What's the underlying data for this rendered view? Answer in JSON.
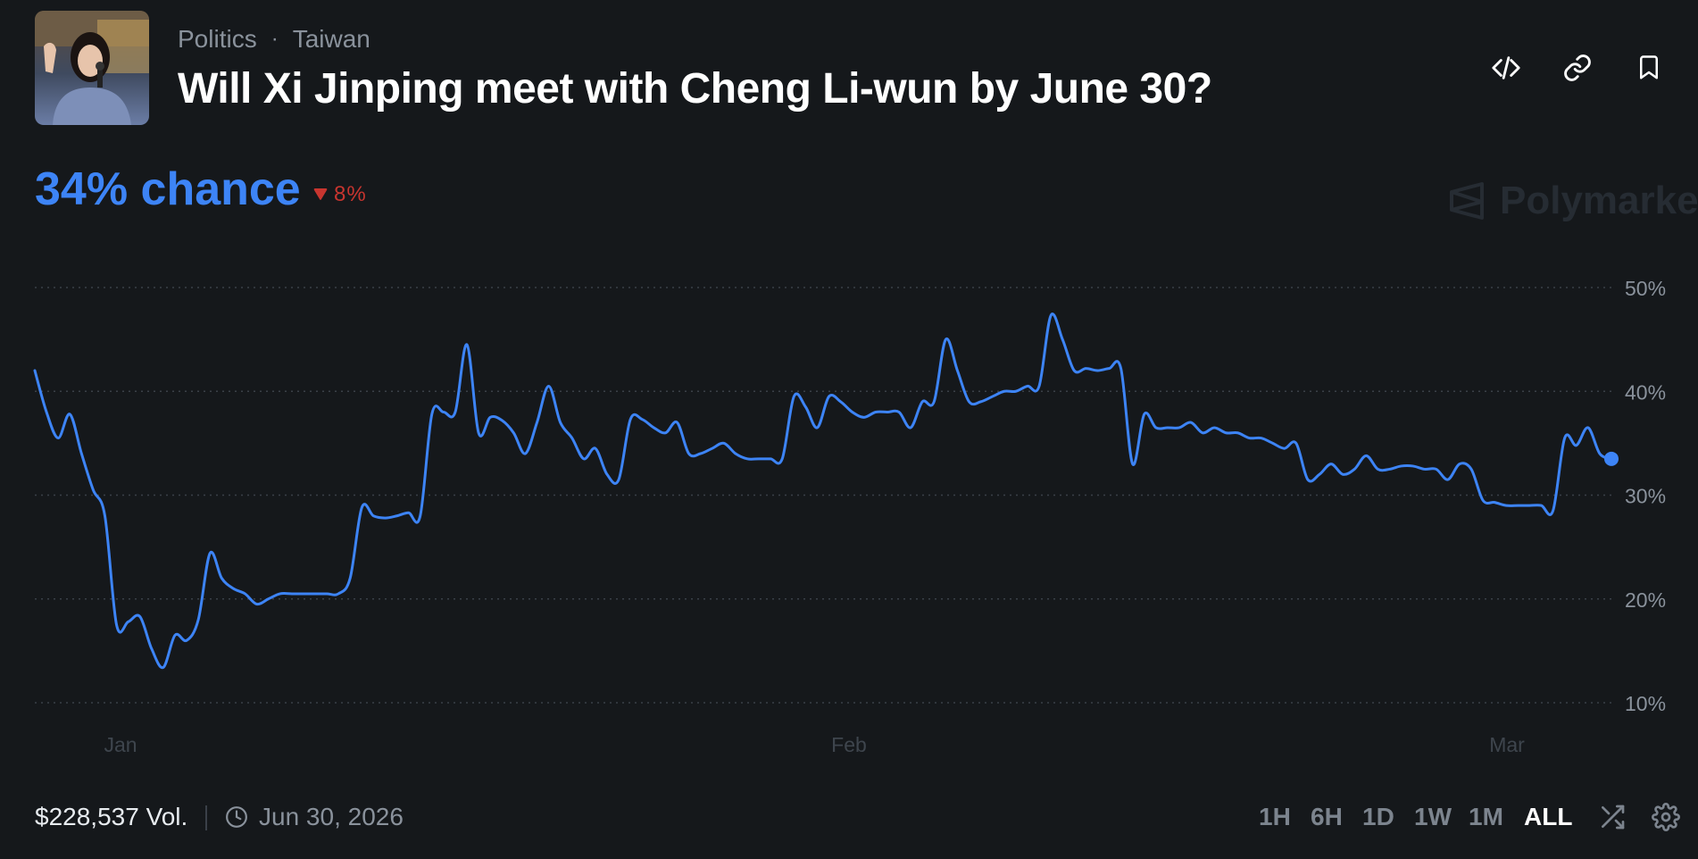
{
  "header": {
    "breadcrumb": [
      "Politics",
      "Taiwan"
    ],
    "title": "Will Xi Jinping meet with Cheng Li-wun by June 30?",
    "icons": [
      "code-icon",
      "link-icon",
      "bookmark-icon"
    ]
  },
  "summary": {
    "chance_text": "34% chance",
    "delta_text": "8%",
    "delta_direction": "down",
    "delta_color": "#c8352f",
    "accent_color": "#3d84f6"
  },
  "brand": {
    "name": "Polymarket"
  },
  "footer": {
    "volume": "$228,537 Vol.",
    "end_date": "Jun 30, 2026",
    "ranges": [
      "1H",
      "6H",
      "1D",
      "1W",
      "1M",
      "ALL"
    ],
    "active_range": "ALL"
  },
  "chart_data": {
    "type": "line",
    "y_ticks": [
      "50%",
      "40%",
      "30%",
      "20%",
      "10%"
    ],
    "x_ticks": [
      "Jan",
      "Feb",
      "Mar"
    ],
    "ylim": [
      10,
      50
    ],
    "grid": true,
    "series": [
      {
        "color": "#3d84f6",
        "points": [
          [
            0,
            42
          ],
          [
            1,
            38
          ],
          [
            2,
            35.5
          ],
          [
            3,
            37.8
          ],
          [
            4,
            34
          ],
          [
            5,
            30.5
          ],
          [
            6,
            28
          ],
          [
            7,
            17.5
          ],
          [
            8,
            17.8
          ],
          [
            9,
            18.3
          ],
          [
            10,
            15.2
          ],
          [
            11,
            13.4
          ],
          [
            12,
            16.5
          ],
          [
            13,
            16
          ],
          [
            14,
            18
          ],
          [
            15,
            24.4
          ],
          [
            16,
            22
          ],
          [
            17,
            21
          ],
          [
            18,
            20.5
          ],
          [
            19,
            19.5
          ],
          [
            20,
            20
          ],
          [
            21,
            20.5
          ],
          [
            22,
            20.5
          ],
          [
            23,
            20.5
          ],
          [
            24,
            20.5
          ],
          [
            25,
            20.5
          ],
          [
            26,
            20.5
          ],
          [
            27,
            22
          ],
          [
            28,
            28.8
          ],
          [
            29,
            28
          ],
          [
            30,
            27.8
          ],
          [
            31,
            28
          ],
          [
            32,
            28.3
          ],
          [
            33,
            28
          ],
          [
            34,
            37.8
          ],
          [
            35,
            38
          ],
          [
            36,
            38
          ],
          [
            37,
            44.5
          ],
          [
            38,
            36
          ],
          [
            39,
            37.5
          ],
          [
            40,
            37.2
          ],
          [
            41,
            36
          ],
          [
            42,
            34
          ],
          [
            43,
            37
          ],
          [
            44,
            40.5
          ],
          [
            45,
            37
          ],
          [
            46,
            35.5
          ],
          [
            47,
            33.5
          ],
          [
            48,
            34.5
          ],
          [
            49,
            32
          ],
          [
            50,
            31.5
          ],
          [
            51,
            37.3
          ],
          [
            52,
            37.3
          ],
          [
            53,
            36.5
          ],
          [
            54,
            36
          ],
          [
            55,
            37
          ],
          [
            56,
            34
          ],
          [
            57,
            34
          ],
          [
            58,
            34.5
          ],
          [
            59,
            35
          ],
          [
            60,
            34
          ],
          [
            61,
            33.5
          ],
          [
            62,
            33.5
          ],
          [
            63,
            33.5
          ],
          [
            64,
            33.5
          ],
          [
            65,
            39.5
          ],
          [
            66,
            38.5
          ],
          [
            67,
            36.5
          ],
          [
            68,
            39.5
          ],
          [
            69,
            39
          ],
          [
            70,
            38
          ],
          [
            71,
            37.5
          ],
          [
            72,
            38
          ],
          [
            73,
            38
          ],
          [
            74,
            38
          ],
          [
            75,
            36.5
          ],
          [
            76,
            39
          ],
          [
            77,
            39
          ],
          [
            78,
            45
          ],
          [
            79,
            42
          ],
          [
            80,
            39
          ],
          [
            81,
            39
          ],
          [
            82,
            39.5
          ],
          [
            83,
            40
          ],
          [
            84,
            40
          ],
          [
            85,
            40.5
          ],
          [
            86,
            40.5
          ],
          [
            87,
            47.3
          ],
          [
            88,
            45
          ],
          [
            89,
            42
          ],
          [
            90,
            42.2
          ],
          [
            91,
            42
          ],
          [
            92,
            42.2
          ],
          [
            93,
            42.2
          ],
          [
            94,
            33
          ],
          [
            95,
            37.8
          ],
          [
            96,
            36.5
          ],
          [
            97,
            36.5
          ],
          [
            98,
            36.5
          ],
          [
            99,
            37
          ],
          [
            100,
            36
          ],
          [
            101,
            36.5
          ],
          [
            102,
            36
          ],
          [
            103,
            36
          ],
          [
            104,
            35.5
          ],
          [
            105,
            35.5
          ],
          [
            106,
            35
          ],
          [
            107,
            34.5
          ],
          [
            108,
            35
          ],
          [
            109,
            31.5
          ],
          [
            110,
            32
          ],
          [
            111,
            33
          ],
          [
            112,
            32
          ],
          [
            113,
            32.5
          ],
          [
            114,
            33.8
          ],
          [
            115,
            32.5
          ],
          [
            116,
            32.5
          ],
          [
            117,
            32.8
          ],
          [
            118,
            32.8
          ],
          [
            119,
            32.5
          ],
          [
            120,
            32.5
          ],
          [
            121,
            31.5
          ],
          [
            122,
            33
          ],
          [
            123,
            32.5
          ],
          [
            124,
            29.5
          ],
          [
            125,
            29.3
          ],
          [
            126,
            29
          ],
          [
            127,
            29
          ],
          [
            128,
            29
          ],
          [
            129,
            29
          ],
          [
            130,
            28.5
          ],
          [
            131,
            35.5
          ],
          [
            132,
            34.8
          ],
          [
            133,
            36.5
          ],
          [
            134,
            34
          ],
          [
            135,
            33.5
          ]
        ]
      }
    ]
  }
}
